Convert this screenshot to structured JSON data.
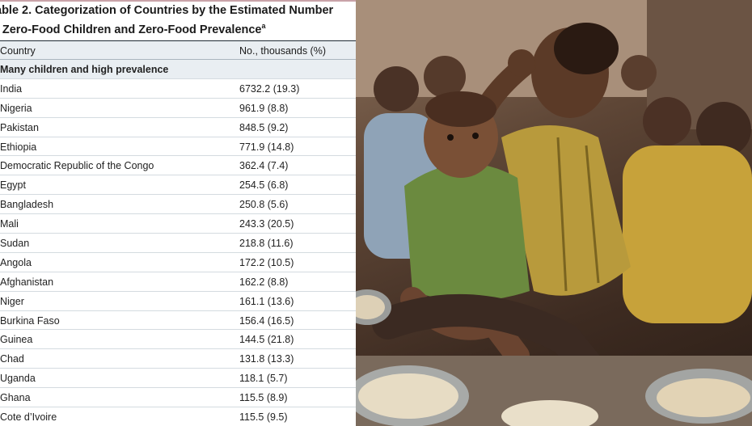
{
  "table": {
    "title_line1": "able 2. Categorization of Countries by the Estimated Number",
    "title_line2": "f Zero-Food Children and Zero-Food Prevalence",
    "title_superscript": "a",
    "columns": {
      "country": "Country",
      "value": "No., thousands (%)"
    },
    "group_label": "Many children and high prevalence",
    "rows": [
      {
        "country": "India",
        "value": "6732.2 (19.3)"
      },
      {
        "country": "Nigeria",
        "value": "961.9 (8.8)"
      },
      {
        "country": "Pakistan",
        "value": "848.5 (9.2)"
      },
      {
        "country": "Ethiopia",
        "value": "771.9 (14.8)"
      },
      {
        "country": "Democratic Republic of the Congo",
        "value": "362.4 (7.4)"
      },
      {
        "country": "Egypt",
        "value": "254.5 (6.8)"
      },
      {
        "country": "Bangladesh",
        "value": "250.8 (5.6)"
      },
      {
        "country": "Mali",
        "value": "243.3 (20.5)"
      },
      {
        "country": "Sudan",
        "value": "218.8 (11.6)"
      },
      {
        "country": "Angola",
        "value": "172.2 (10.5)"
      },
      {
        "country": "Afghanistan",
        "value": "162.2 (8.8)"
      },
      {
        "country": "Niger",
        "value": "161.1 (13.6)"
      },
      {
        "country": "Burkina Faso",
        "value": "156.4 (16.5)"
      },
      {
        "country": "Guinea",
        "value": "144.5 (21.8)"
      },
      {
        "country": "Chad",
        "value": "131.8 (13.3)"
      },
      {
        "country": "Uganda",
        "value": "118.1 (5.7)"
      },
      {
        "country": "Ghana",
        "value": "115.5 (8.9)"
      },
      {
        "country": "Cote d’Ivoire",
        "value": "115.5 (9.5)"
      }
    ]
  },
  "colors": {
    "header_band": "#e9eef2",
    "row_rule": "#d4dbe0",
    "text": "#222222"
  }
}
